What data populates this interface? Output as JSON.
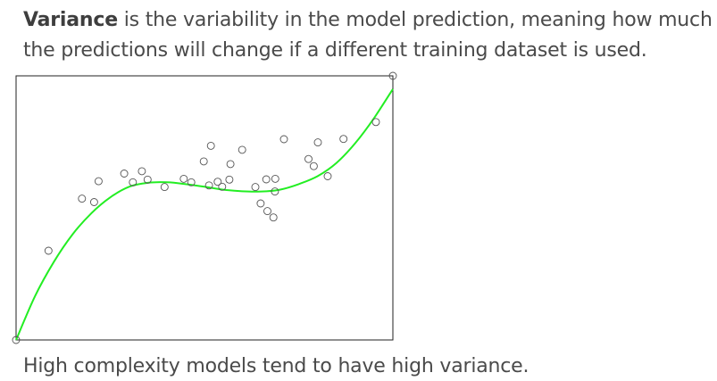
{
  "intro": {
    "bold_term": "Variance",
    "rest": " is the variability in the model prediction, meaning how much the predictions will change if a different training dataset is used."
  },
  "footer": {
    "text": "High complexity models tend to have high variance."
  },
  "chart_data": {
    "type": "scatter",
    "title": "",
    "xlabel": "",
    "ylabel": "",
    "xlim": [
      0,
      1
    ],
    "ylim": [
      0,
      1
    ],
    "grid": false,
    "axes_ticks": false,
    "colors": {
      "fit_line": "#22ee22",
      "points": "#555555",
      "frame": "#222222"
    },
    "series": [
      {
        "kind": "points",
        "x": [
          0.0,
          0.086,
          0.175,
          0.207,
          0.219,
          0.287,
          0.31,
          0.334,
          0.349,
          0.394,
          0.445,
          0.465,
          0.498,
          0.512,
          0.517,
          0.535,
          0.547,
          0.566,
          0.569,
          0.6,
          0.635,
          0.649,
          0.664,
          0.667,
          0.683,
          0.687,
          0.688,
          0.711,
          0.776,
          0.79,
          0.801,
          0.827,
          0.869,
          0.955,
          1.0
        ],
        "y": [
          0.0,
          0.338,
          0.535,
          0.522,
          0.601,
          0.63,
          0.597,
          0.639,
          0.607,
          0.579,
          0.61,
          0.597,
          0.676,
          0.585,
          0.735,
          0.599,
          0.58,
          0.607,
          0.666,
          0.72,
          0.579,
          0.517,
          0.608,
          0.488,
          0.464,
          0.562,
          0.61,
          0.76,
          0.685,
          0.658,
          0.748,
          0.62,
          0.761,
          0.825,
          1.0
        ]
      },
      {
        "kind": "fit-line",
        "x": [
          0.0,
          0.05,
          0.1,
          0.15,
          0.2,
          0.25,
          0.3,
          0.35,
          0.4,
          0.45,
          0.5,
          0.55,
          0.6,
          0.65,
          0.7,
          0.75,
          0.8,
          0.85,
          0.9,
          0.95,
          1.0
        ],
        "y": [
          0.0,
          0.165,
          0.295,
          0.4,
          0.48,
          0.54,
          0.58,
          0.595,
          0.597,
          0.59,
          0.58,
          0.569,
          0.563,
          0.562,
          0.569,
          0.59,
          0.62,
          0.67,
          0.745,
          0.84,
          0.95
        ]
      }
    ]
  }
}
